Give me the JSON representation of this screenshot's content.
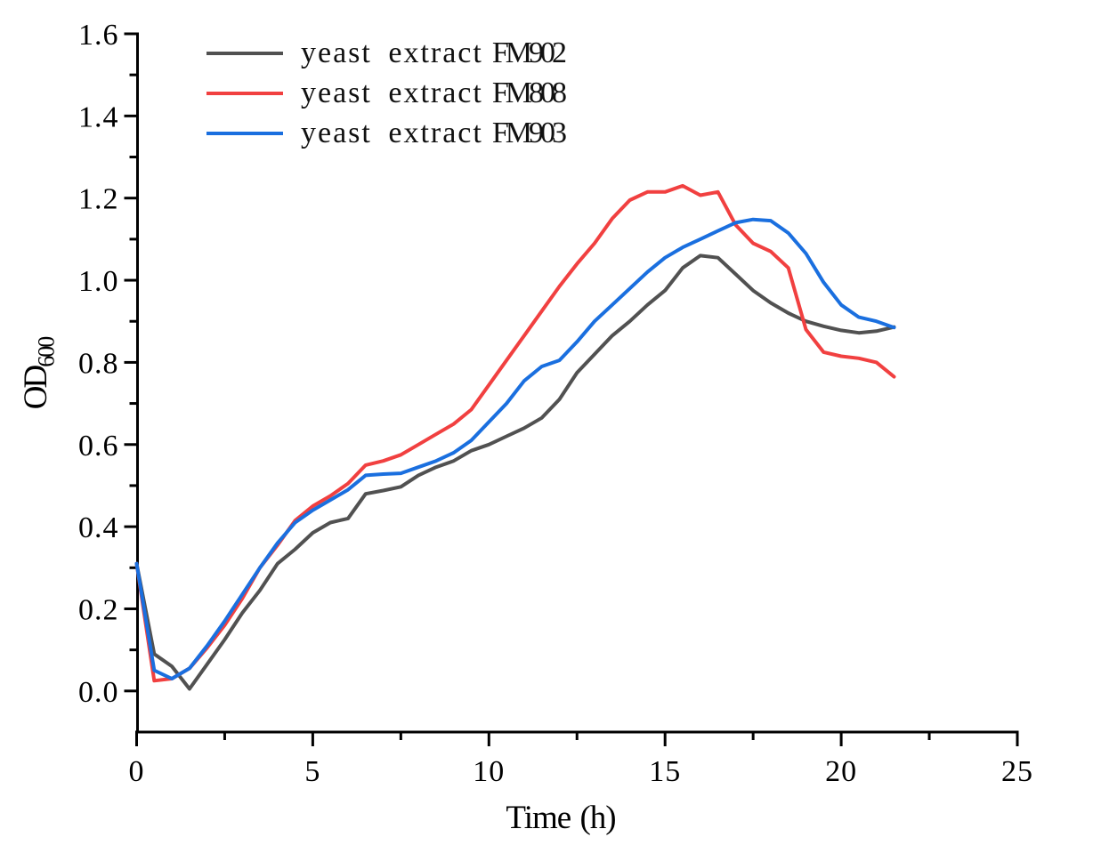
{
  "chart_data": {
    "type": "line",
    "title": "",
    "xlabel": "Time (h)",
    "ylabel": "OD",
    "ylabel_subscript": "600",
    "grid": false,
    "legend_position": "top-left-inside",
    "xlim": [
      0,
      25
    ],
    "ylim": [
      -0.1,
      1.6
    ],
    "x_tick_labels": [
      "0",
      "5",
      "10",
      "15",
      "20",
      "25"
    ],
    "x_tick_values": [
      0,
      5,
      10,
      15,
      20,
      25
    ],
    "x_minor_ticks": [
      2.5,
      7.5,
      12.5,
      17.5,
      22.5
    ],
    "y_tick_labels": [
      "0.0",
      "0.2",
      "0.4",
      "0.6",
      "0.8",
      "1.0",
      "1.2",
      "1.4",
      "1.6"
    ],
    "y_tick_values": [
      0,
      0.2,
      0.4,
      0.6,
      0.8,
      1.0,
      1.2,
      1.4,
      1.6
    ],
    "y_minor_ticks": [
      0.1,
      0.3,
      0.5,
      0.7,
      0.9,
      1.1,
      1.3,
      1.5
    ],
    "axis_color": "#000000",
    "x": [
      0,
      0.5,
      1,
      1.5,
      2,
      2.5,
      3,
      3.5,
      4,
      4.5,
      5,
      5.5,
      6,
      6.5,
      7,
      7.5,
      8,
      8.5,
      9,
      9.5,
      10,
      10.5,
      11,
      11.5,
      12,
      12.5,
      13,
      13.5,
      14,
      14.5,
      15,
      15.5,
      16,
      16.5,
      17,
      17.5,
      18,
      18.5,
      19,
      19.5,
      20,
      20.5,
      21,
      21.5
    ],
    "series": [
      {
        "name": "yeast extract FM902",
        "label_prefix": "yeast extract",
        "code": "FM902",
        "color": "#515151",
        "values": [
          0.31,
          0.09,
          0.06,
          0.005,
          0.065,
          0.125,
          0.19,
          0.245,
          0.31,
          0.345,
          0.385,
          0.41,
          0.42,
          0.48,
          0.488,
          0.497,
          0.525,
          0.545,
          0.56,
          0.585,
          0.6,
          0.62,
          0.64,
          0.665,
          0.71,
          0.775,
          0.82,
          0.865,
          0.9,
          0.94,
          0.975,
          1.03,
          1.06,
          1.055,
          1.015,
          0.975,
          0.945,
          0.92,
          0.9,
          0.888,
          0.878,
          0.872,
          0.876,
          0.886
        ]
      },
      {
        "name": "yeast extract FM808",
        "label_prefix": "yeast extract",
        "code": "FM808",
        "color": "#F14040",
        "values": [
          0.31,
          0.025,
          0.03,
          0.055,
          0.105,
          0.16,
          0.225,
          0.3,
          0.355,
          0.415,
          0.45,
          0.475,
          0.505,
          0.55,
          0.56,
          0.575,
          0.6,
          0.625,
          0.65,
          0.685,
          0.745,
          0.805,
          0.865,
          0.925,
          0.985,
          1.04,
          1.09,
          1.15,
          1.195,
          1.215,
          1.215,
          1.23,
          1.207,
          1.215,
          1.135,
          1.09,
          1.07,
          1.03,
          0.88,
          0.825,
          0.815,
          0.81,
          0.8,
          0.765
        ]
      },
      {
        "name": "yeast extract FM903",
        "label_prefix": "yeast extract",
        "code": "FM903",
        "color": "#1A6FDF",
        "values": [
          0.31,
          0.05,
          0.03,
          0.055,
          0.11,
          0.17,
          0.235,
          0.3,
          0.36,
          0.41,
          0.44,
          0.465,
          0.49,
          0.525,
          0.528,
          0.53,
          0.545,
          0.56,
          0.58,
          0.61,
          0.655,
          0.7,
          0.755,
          0.79,
          0.805,
          0.85,
          0.9,
          0.94,
          0.98,
          1.02,
          1.055,
          1.08,
          1.1,
          1.12,
          1.14,
          1.148,
          1.145,
          1.115,
          1.065,
          0.995,
          0.94,
          0.91,
          0.9,
          0.885
        ]
      }
    ]
  }
}
